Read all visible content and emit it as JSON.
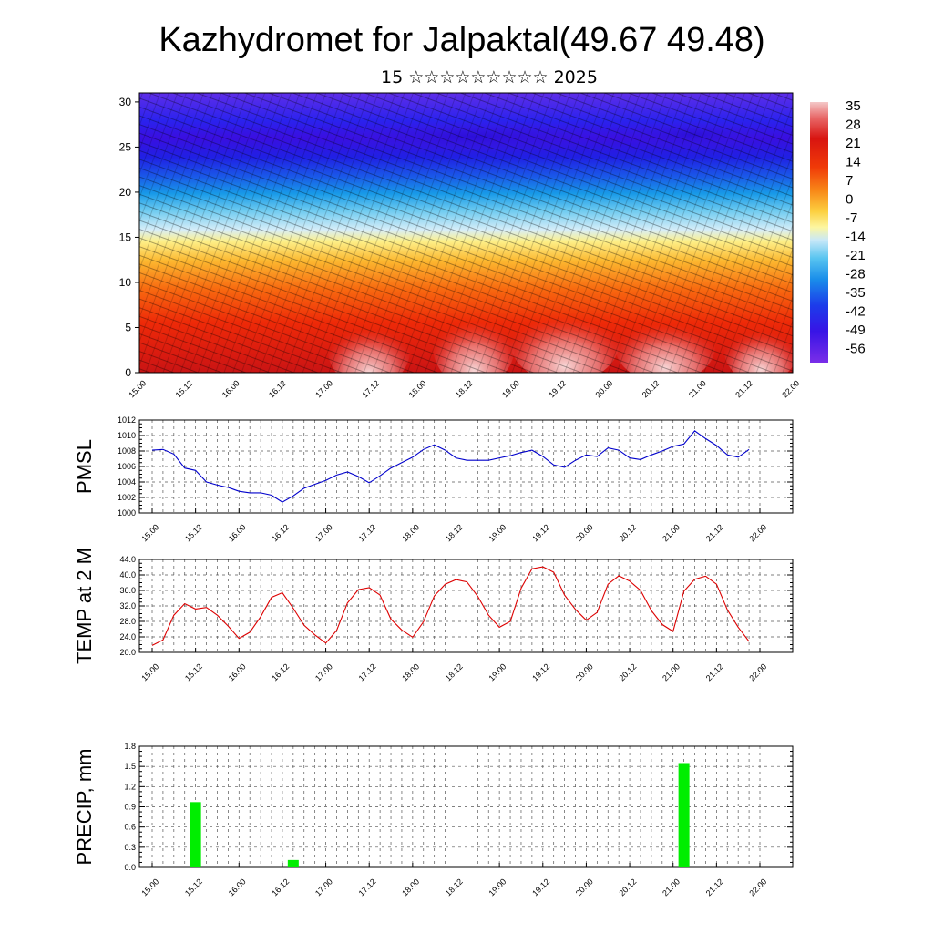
{
  "title": "Kazhydromet for Jalpaktal(49.67 49.48)",
  "subtitle": "15 ☆☆☆☆☆☆☆☆☆ 2025",
  "time_labels": [
    "15.00",
    "15.12",
    "16.00",
    "16.12",
    "17.00",
    "17.12",
    "18.00",
    "18.12",
    "19.00",
    "19.12",
    "20.00",
    "20.12",
    "21.00",
    "21.12",
    "22.00"
  ],
  "colors": {
    "pmsl_line": "#0000cc",
    "temp_line": "#dd0000",
    "precip_bar": "#00ee00"
  },
  "chart_data": [
    {
      "type": "heatmap",
      "panel": "cross-section",
      "y_ticks": [
        0,
        5,
        10,
        15,
        20,
        25,
        30
      ],
      "ylim": [
        0,
        31
      ],
      "colorbar": {
        "labels": [
          "35",
          "28",
          "21",
          "14",
          "7",
          "0",
          "-7",
          "-14",
          "-21",
          "-28",
          "-35",
          "-42",
          "-49",
          "-56"
        ],
        "range": [
          -60,
          38
        ]
      },
      "overlay": "wind-vectors",
      "description": ""
    },
    {
      "type": "line",
      "ylabel": "PMSL",
      "ylim": [
        1000,
        1012
      ],
      "y_ticks": [
        "1000",
        "1002",
        "1004",
        "1006",
        "1008",
        "1010",
        "1012"
      ],
      "x_range": [
        0,
        168
      ],
      "series": [
        {
          "x": [
            0,
            3,
            6,
            9,
            12,
            15,
            18,
            21,
            24,
            27,
            30,
            33,
            36,
            39,
            42,
            45,
            48,
            51,
            54,
            57,
            60,
            63,
            66,
            69,
            72,
            75,
            78,
            81,
            84,
            87,
            90,
            93,
            96,
            99,
            102,
            105,
            108,
            111,
            114,
            117,
            120,
            123,
            126,
            129,
            132,
            135,
            138,
            141,
            144,
            147,
            150,
            153,
            156,
            159,
            162,
            165
          ],
          "values": [
            1008.1,
            1008.2,
            1007.6,
            1005.8,
            1005.5,
            1004.0,
            1003.6,
            1003.3,
            1002.8,
            1002.6,
            1002.6,
            1002.3,
            1001.4,
            1002.2,
            1003.2,
            1003.7,
            1004.2,
            1004.9,
            1005.3,
            1004.7,
            1003.9,
            1004.8,
            1005.8,
            1006.5,
            1007.2,
            1008.2,
            1008.8,
            1008.1,
            1007.1,
            1006.8,
            1006.8,
            1006.8,
            1007.1,
            1007.4,
            1007.8,
            1008.1,
            1007.3,
            1006.2,
            1005.9,
            1006.8,
            1007.5,
            1007.3,
            1008.4,
            1008.1,
            1007.1,
            1006.9,
            1007.5,
            1008.0,
            1008.6,
            1008.9,
            1010.6,
            1009.6,
            1008.7,
            1007.5,
            1007.2,
            1008.2
          ]
        }
      ]
    },
    {
      "type": "line",
      "ylabel": "TEMP at 2 M",
      "ylim": [
        20,
        44
      ],
      "y_ticks": [
        "20.0",
        "24.0",
        "28.0",
        "32.0",
        "36.0",
        "40.0",
        "44.0"
      ],
      "x_range": [
        0,
        168
      ],
      "series": [
        {
          "x": [
            0,
            3,
            6,
            9,
            12,
            15,
            18,
            21,
            24,
            27,
            30,
            33,
            36,
            39,
            42,
            45,
            48,
            51,
            54,
            57,
            60,
            63,
            66,
            69,
            72,
            75,
            78,
            81,
            84,
            87,
            90,
            93,
            96,
            99,
            102,
            105,
            108,
            111,
            114,
            117,
            120,
            123,
            126,
            129,
            132,
            135,
            138,
            141,
            144,
            147,
            150,
            153,
            156,
            159,
            162,
            165
          ],
          "values": [
            21.8,
            23.2,
            29.6,
            32.6,
            31.2,
            31.6,
            29.6,
            26.8,
            23.6,
            25.2,
            29.2,
            34.2,
            35.4,
            31.4,
            27.0,
            24.5,
            22.4,
            25.7,
            32.8,
            36.2,
            36.7,
            34.8,
            28.6,
            25.8,
            23.9,
            27.9,
            34.6,
            37.6,
            38.8,
            38.2,
            34.5,
            29.6,
            26.5,
            28.0,
            36.6,
            41.6,
            42.1,
            40.7,
            34.8,
            31.1,
            28.3,
            30.3,
            37.6,
            39.8,
            38.4,
            36.0,
            30.8,
            27.2,
            25.4,
            35.8,
            38.9,
            39.7,
            37.6,
            31.0,
            26.5,
            22.8
          ]
        }
      ]
    },
    {
      "type": "bar",
      "ylabel": "PRECIP, mm",
      "ylim": [
        0,
        1.8
      ],
      "y_ticks": [
        "0.0",
        "0.3",
        "0.6",
        "0.9",
        "1.2",
        "1.5",
        "1.8"
      ],
      "x_range": [
        0,
        168
      ],
      "bars": [
        {
          "x": 12,
          "value": 0.97
        },
        {
          "x": 39,
          "value": 0.11
        },
        {
          "x": 147,
          "value": 1.55
        }
      ]
    }
  ]
}
